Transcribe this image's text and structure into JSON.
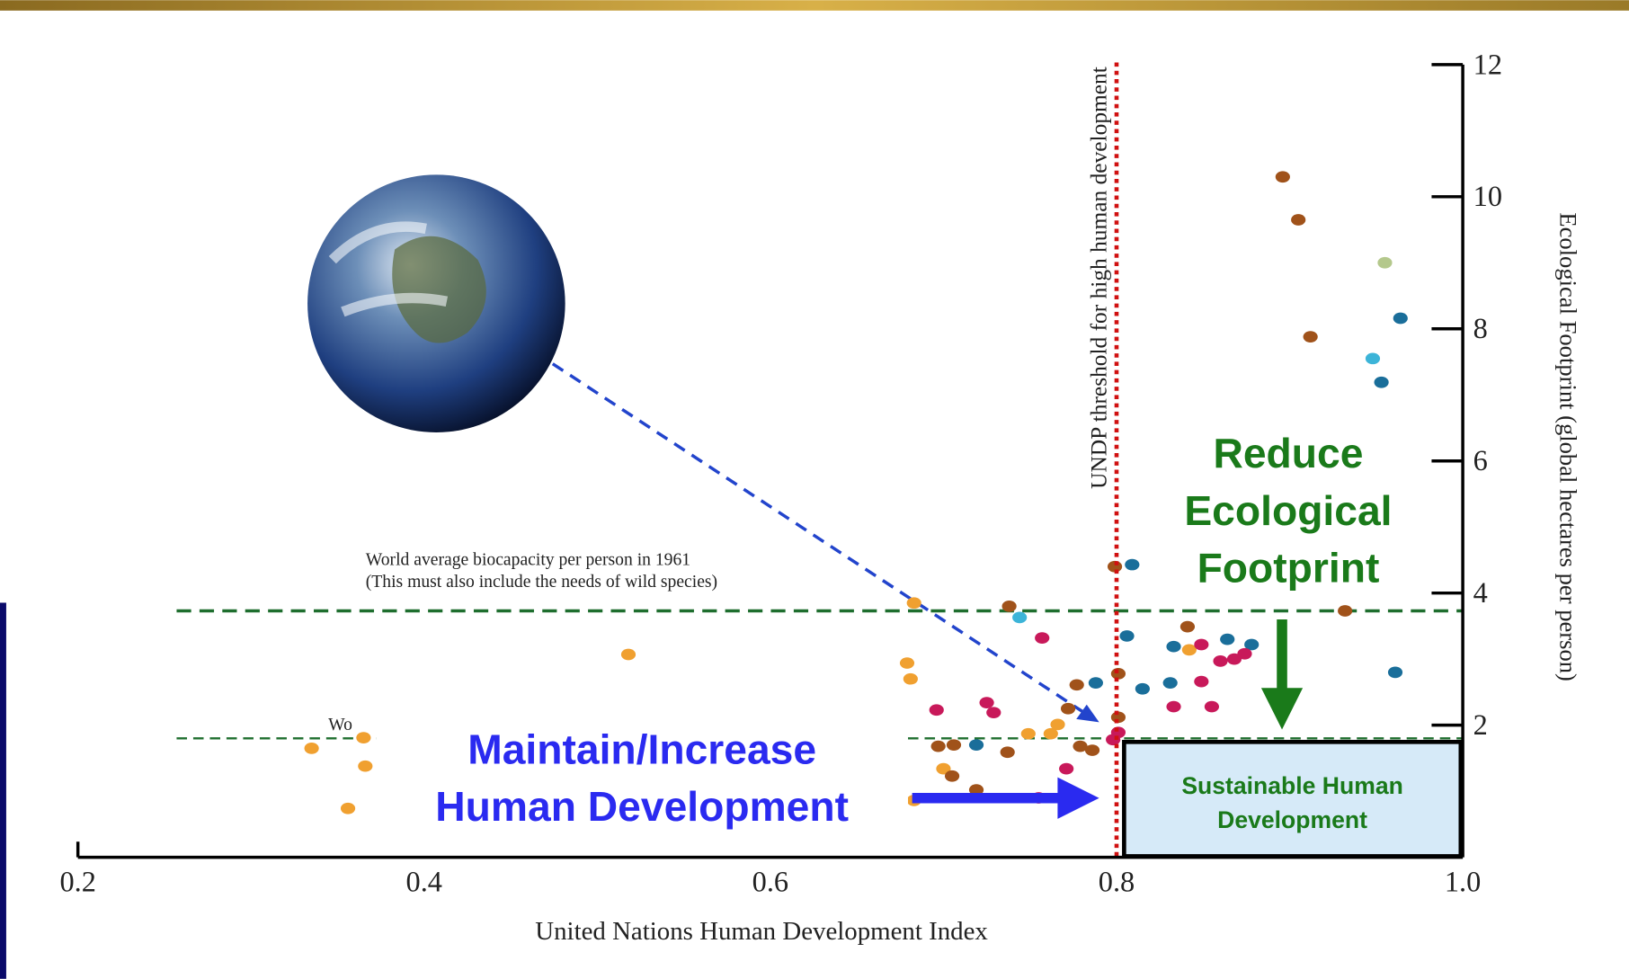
{
  "chart_data": {
    "type": "scatter",
    "xlabel": "United Nations Human Development Index",
    "ylabel": "Ecological Footprint (global hectares per person)",
    "xlim": [
      0.2,
      1.0
    ],
    "xticks": [
      0.2,
      0.4,
      0.6,
      0.8,
      {
        "value": 1,
        "label": "1.0"
      }
    ],
    "ylim": [
      0,
      12
    ],
    "yticks": [
      2,
      4,
      6,
      8,
      10,
      12
    ],
    "x": [
      0.896,
      0.905,
      0.955,
      0.964,
      0.912,
      0.948,
      0.953,
      0.809,
      0.799,
      0.932,
      0.738,
      0.744,
      0.757,
      0.806,
      0.841,
      0.833,
      0.842,
      0.849,
      0.864,
      0.878,
      0.868,
      0.86,
      0.874,
      0.961,
      0.801,
      0.815,
      0.831,
      0.849,
      0.788,
      0.777,
      0.833,
      0.855,
      0.801,
      0.801,
      0.798,
      0.772,
      0.766,
      0.762,
      0.749,
      0.779,
      0.786,
      0.771,
      0.737,
      0.725,
      0.729,
      0.696,
      0.719,
      0.706,
      0.697,
      0.7,
      0.705,
      0.719,
      0.755,
      0.679,
      0.681,
      0.683,
      0.518,
      0.526,
      0.335,
      0.365,
      0.366,
      0.356,
      0.683
    ],
    "values": [
      10.3,
      9.65,
      9.0,
      8.16,
      7.88,
      7.55,
      7.19,
      4.43,
      4.4,
      3.73,
      3.8,
      3.63,
      3.32,
      3.35,
      3.49,
      3.19,
      3.14,
      3.22,
      3.3,
      3.22,
      3.0,
      2.97,
      3.08,
      2.8,
      2.78,
      2.55,
      2.64,
      2.66,
      2.64,
      2.61,
      2.28,
      2.28,
      2.12,
      1.89,
      1.78,
      2.25,
      2.01,
      1.87,
      1.87,
      1.68,
      1.62,
      1.34,
      1.59,
      2.34,
      2.19,
      2.23,
      1.7,
      1.7,
      1.68,
      1.34,
      1.23,
      1.02,
      0.9,
      2.94,
      2.7,
      3.85,
      3.07,
      2.28,
      1.65,
      1.81,
      1.38,
      0.74,
      0.86
    ],
    "point_colors": [
      "#a0521a",
      "#a0521a",
      "#b4c88c",
      "#1a6e9a",
      "#a0521a",
      "#3cb4d8",
      "#1a6e9a",
      "#1a6e9a",
      "#a0521a",
      "#a0521a",
      "#a0521a",
      "#3cb4d8",
      "#c8195a",
      "#1a6e9a",
      "#a0521a",
      "#1a6e9a",
      "#f0a030",
      "#c8195a",
      "#1a6e9a",
      "#1a6e9a",
      "#c8195a",
      "#c8195a",
      "#c8195a",
      "#1a6e9a",
      "#a0521a",
      "#1a6e9a",
      "#1a6e9a",
      "#c8195a",
      "#1a6e9a",
      "#a0521a",
      "#c8195a",
      "#c8195a",
      "#a0521a",
      "#c8195a",
      "#c8195a",
      "#a0521a",
      "#f0a030",
      "#f0a030",
      "#f0a030",
      "#a0521a",
      "#a0521a",
      "#c8195a",
      "#a0521a",
      "#c8195a",
      "#c8195a",
      "#c8195a",
      "#1a6e9a",
      "#a0521a",
      "#a0521a",
      "#f0a030",
      "#a0521a",
      "#a0521a",
      "#c8195a",
      "#f0a030",
      "#f0a030",
      "#f0a030",
      "#f0a030",
      "#f0a030",
      "#f0a030",
      "#f0a030",
      "#f0a030",
      "#f0a030",
      "#f0a030"
    ],
    "hlines": [
      {
        "value": 3.73,
        "label": [
          "World average biocapacity per person in 1961",
          "(This must also include the needs of wild species)"
        ],
        "color": "#1e6e2e"
      },
      {
        "value": 1.8,
        "label": [
          "Wo"
        ],
        "color": "#1e6e2e"
      }
    ],
    "vline": {
      "value": 0.8,
      "label": "UNDP threshold for high human development",
      "color": "#d01010"
    },
    "annotations": {
      "reduce": [
        "Reduce",
        "Ecological",
        "Footprint"
      ],
      "reduce_color": "#1a7a1a",
      "maintain": [
        "Maintain/Increase",
        "Human Development"
      ],
      "maintain_color": "#2a2af0",
      "target": [
        "Sustainable Human",
        "Development"
      ],
      "target_color": "#1a7a1a"
    }
  }
}
